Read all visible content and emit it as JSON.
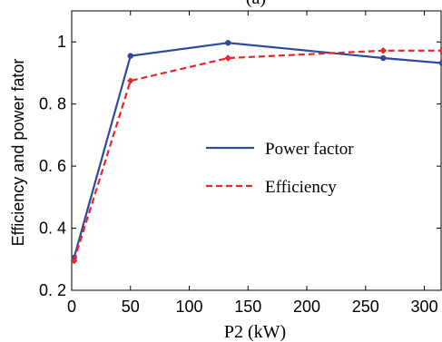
{
  "chart_data": {
    "type": "line",
    "title": "(a)",
    "xlabel": "P2 (kW)",
    "ylabel": "Efficiency and power fator",
    "xlim": [
      0,
      315
    ],
    "ylim": [
      0.2,
      1.1
    ],
    "xticks": [
      0,
      50,
      100,
      150,
      200,
      250,
      300
    ],
    "yticks": [
      0.2,
      0.4,
      0.6,
      0.8,
      1.0
    ],
    "ytick_labels": [
      "0. 2",
      "0. 4",
      "0. 6",
      "0. 8",
      "1"
    ],
    "grid": false,
    "legend_position": "center-right",
    "series": [
      {
        "name": "Power factor",
        "color": "#2e4a9e",
        "line_style": "solid",
        "marker": "circle",
        "x": [
          2,
          50,
          133,
          265,
          315
        ],
        "y": [
          0.305,
          0.955,
          0.997,
          0.948,
          0.932
        ]
      },
      {
        "name": "Efficiency",
        "color": "#e8262b",
        "line_style": "dashed",
        "marker": "diamond",
        "x": [
          2,
          50,
          133,
          265,
          315
        ],
        "y": [
          0.295,
          0.875,
          0.948,
          0.972,
          0.972
        ]
      }
    ]
  }
}
